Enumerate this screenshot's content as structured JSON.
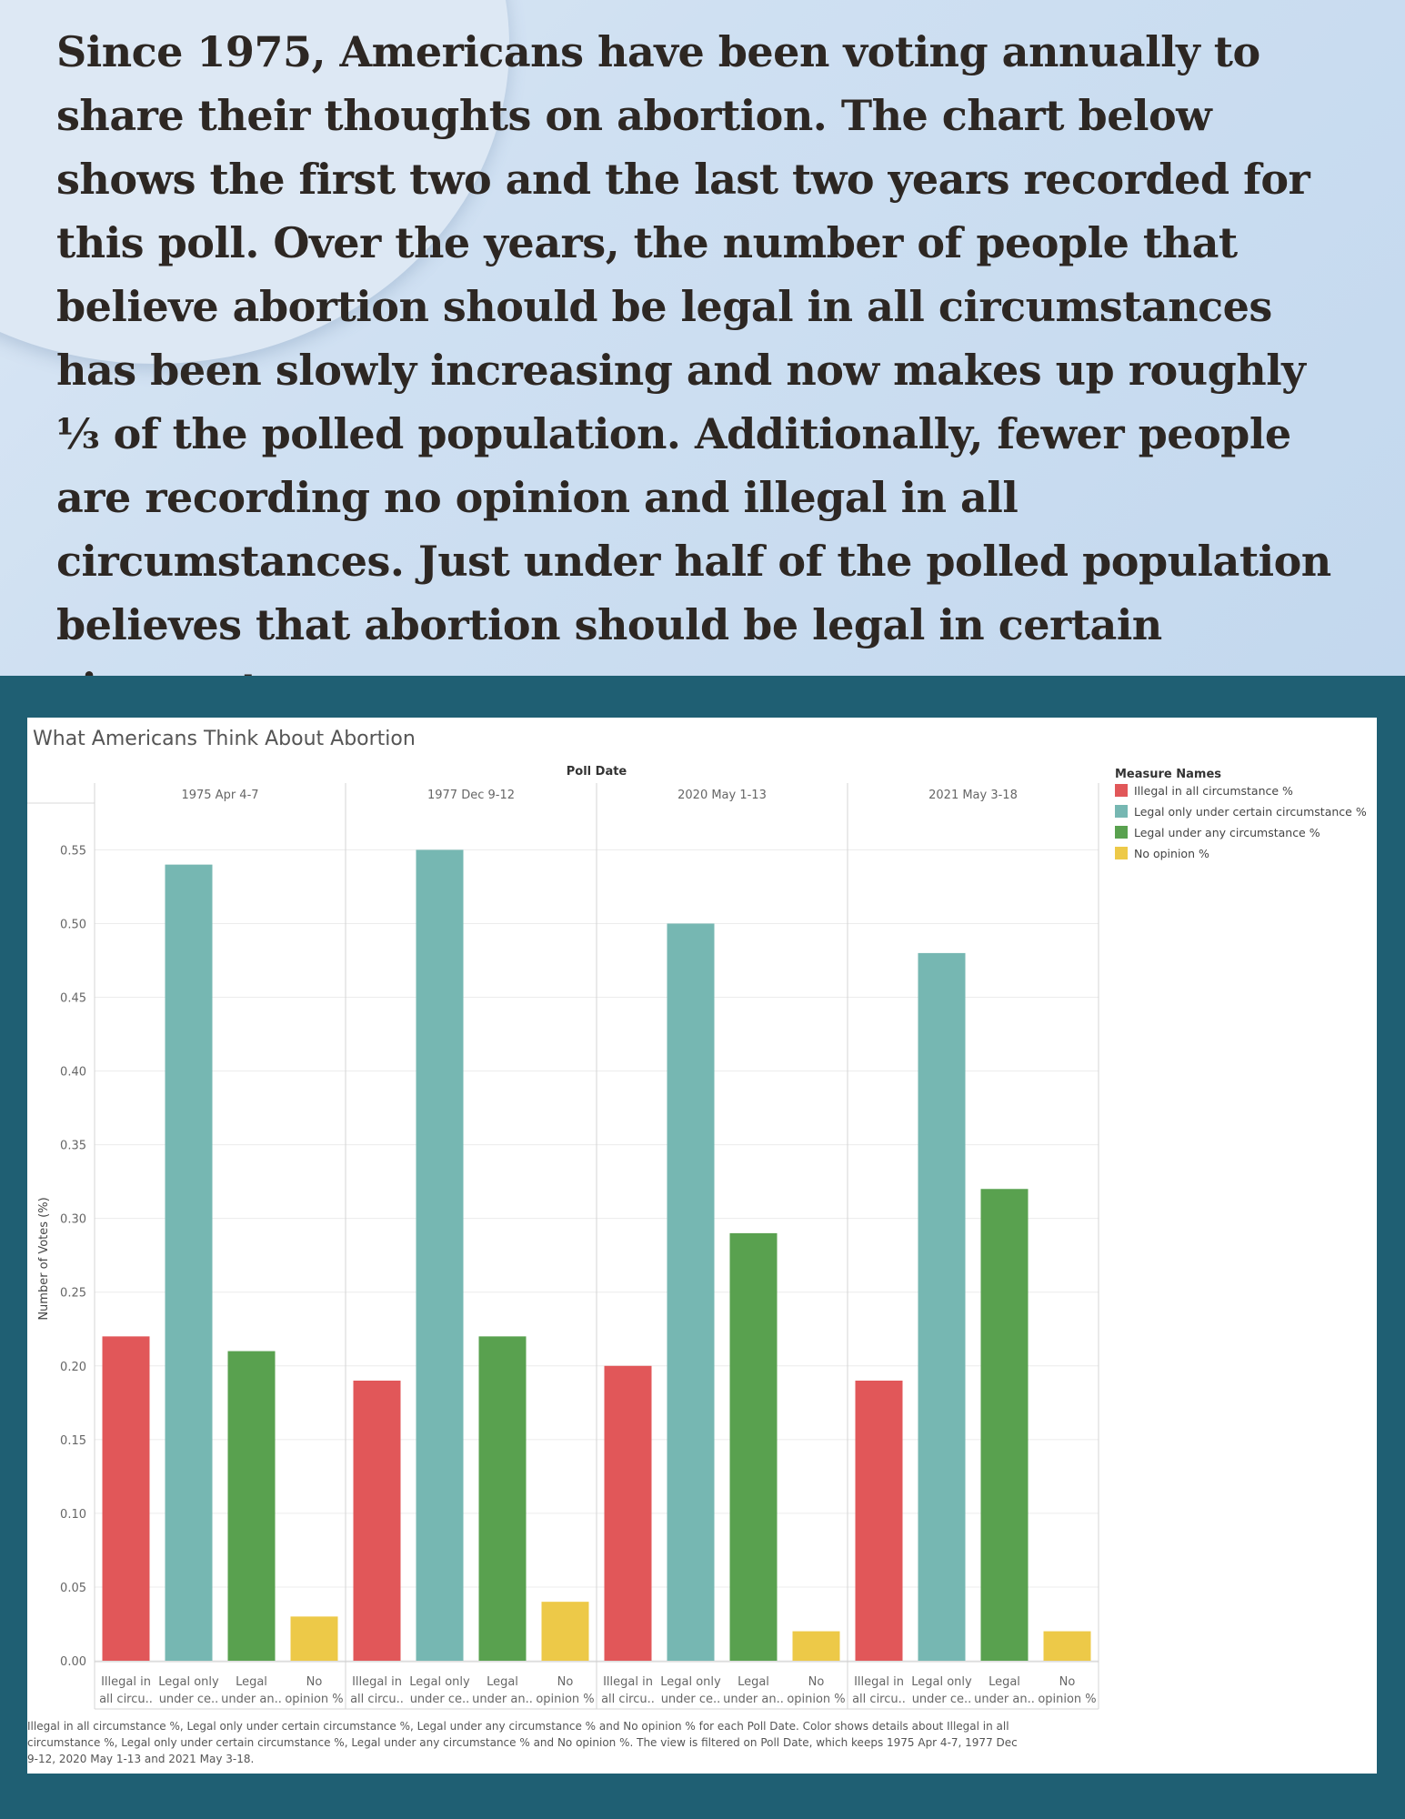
{
  "intro_text": "Since 1975, Americans have been voting annually to share their thoughts on abortion. The chart below shows the first two and the last two years recorded for this poll. Over the years, the number of people that believe abortion should be legal in all circumstances has been slowly increasing and now makes up roughly ⅓ of the polled population. Additionally, fewer people are recording no opinion and illegal in all circumstances. Just under half of the polled population believes that abortion should be legal in certain circumstances.",
  "chart_data": {
    "type": "bar",
    "title": "What Americans Think About Abortion",
    "column_header": "Poll Date",
    "ylabel": "Number of Votes (%)",
    "ylim": [
      0,
      0.57
    ],
    "yticks": [
      "0.00",
      "0.05",
      "0.10",
      "0.15",
      "0.20",
      "0.25",
      "0.30",
      "0.35",
      "0.40",
      "0.45",
      "0.50",
      "0.55"
    ],
    "grid": true,
    "legend_title": "Measure Names",
    "legend_position": "right",
    "groups": [
      "1975 Apr 4-7",
      "1977 Dec 9-12",
      "2020 May 1-13",
      "2021 May 3-18"
    ],
    "category_labels": [
      [
        "Illegal in",
        "all circu.."
      ],
      [
        "Legal only",
        "under ce.."
      ],
      [
        "Legal",
        "under an.."
      ],
      [
        "No",
        "opinion %"
      ]
    ],
    "series": [
      {
        "name": "Illegal in all circumstance %",
        "color": "#e15759",
        "values": [
          0.22,
          0.19,
          0.2,
          0.19
        ]
      },
      {
        "name": "Legal only under certain circumstance %",
        "color": "#76b7b2",
        "values": [
          0.54,
          0.55,
          0.5,
          0.48
        ]
      },
      {
        "name": "Legal under any circumstance %",
        "color": "#59a14f",
        "values": [
          0.21,
          0.22,
          0.29,
          0.32
        ]
      },
      {
        "name": "No opinion %",
        "color": "#edc948",
        "values": [
          0.03,
          0.04,
          0.02,
          0.02
        ]
      }
    ],
    "caption": [
      "Illegal in all circumstance %, Legal only under certain circumstance %, Legal under any circumstance % and No opinion % for each Poll Date.  Color shows details about Illegal in all",
      "circumstance %, Legal only under certain circumstance %, Legal under any circumstance % and No opinion %. The view is filtered on Poll Date, which keeps 1975 Apr 4-7, 1977 Dec",
      "9-12, 2020 May 1-13 and 2021 May 3-18."
    ]
  }
}
